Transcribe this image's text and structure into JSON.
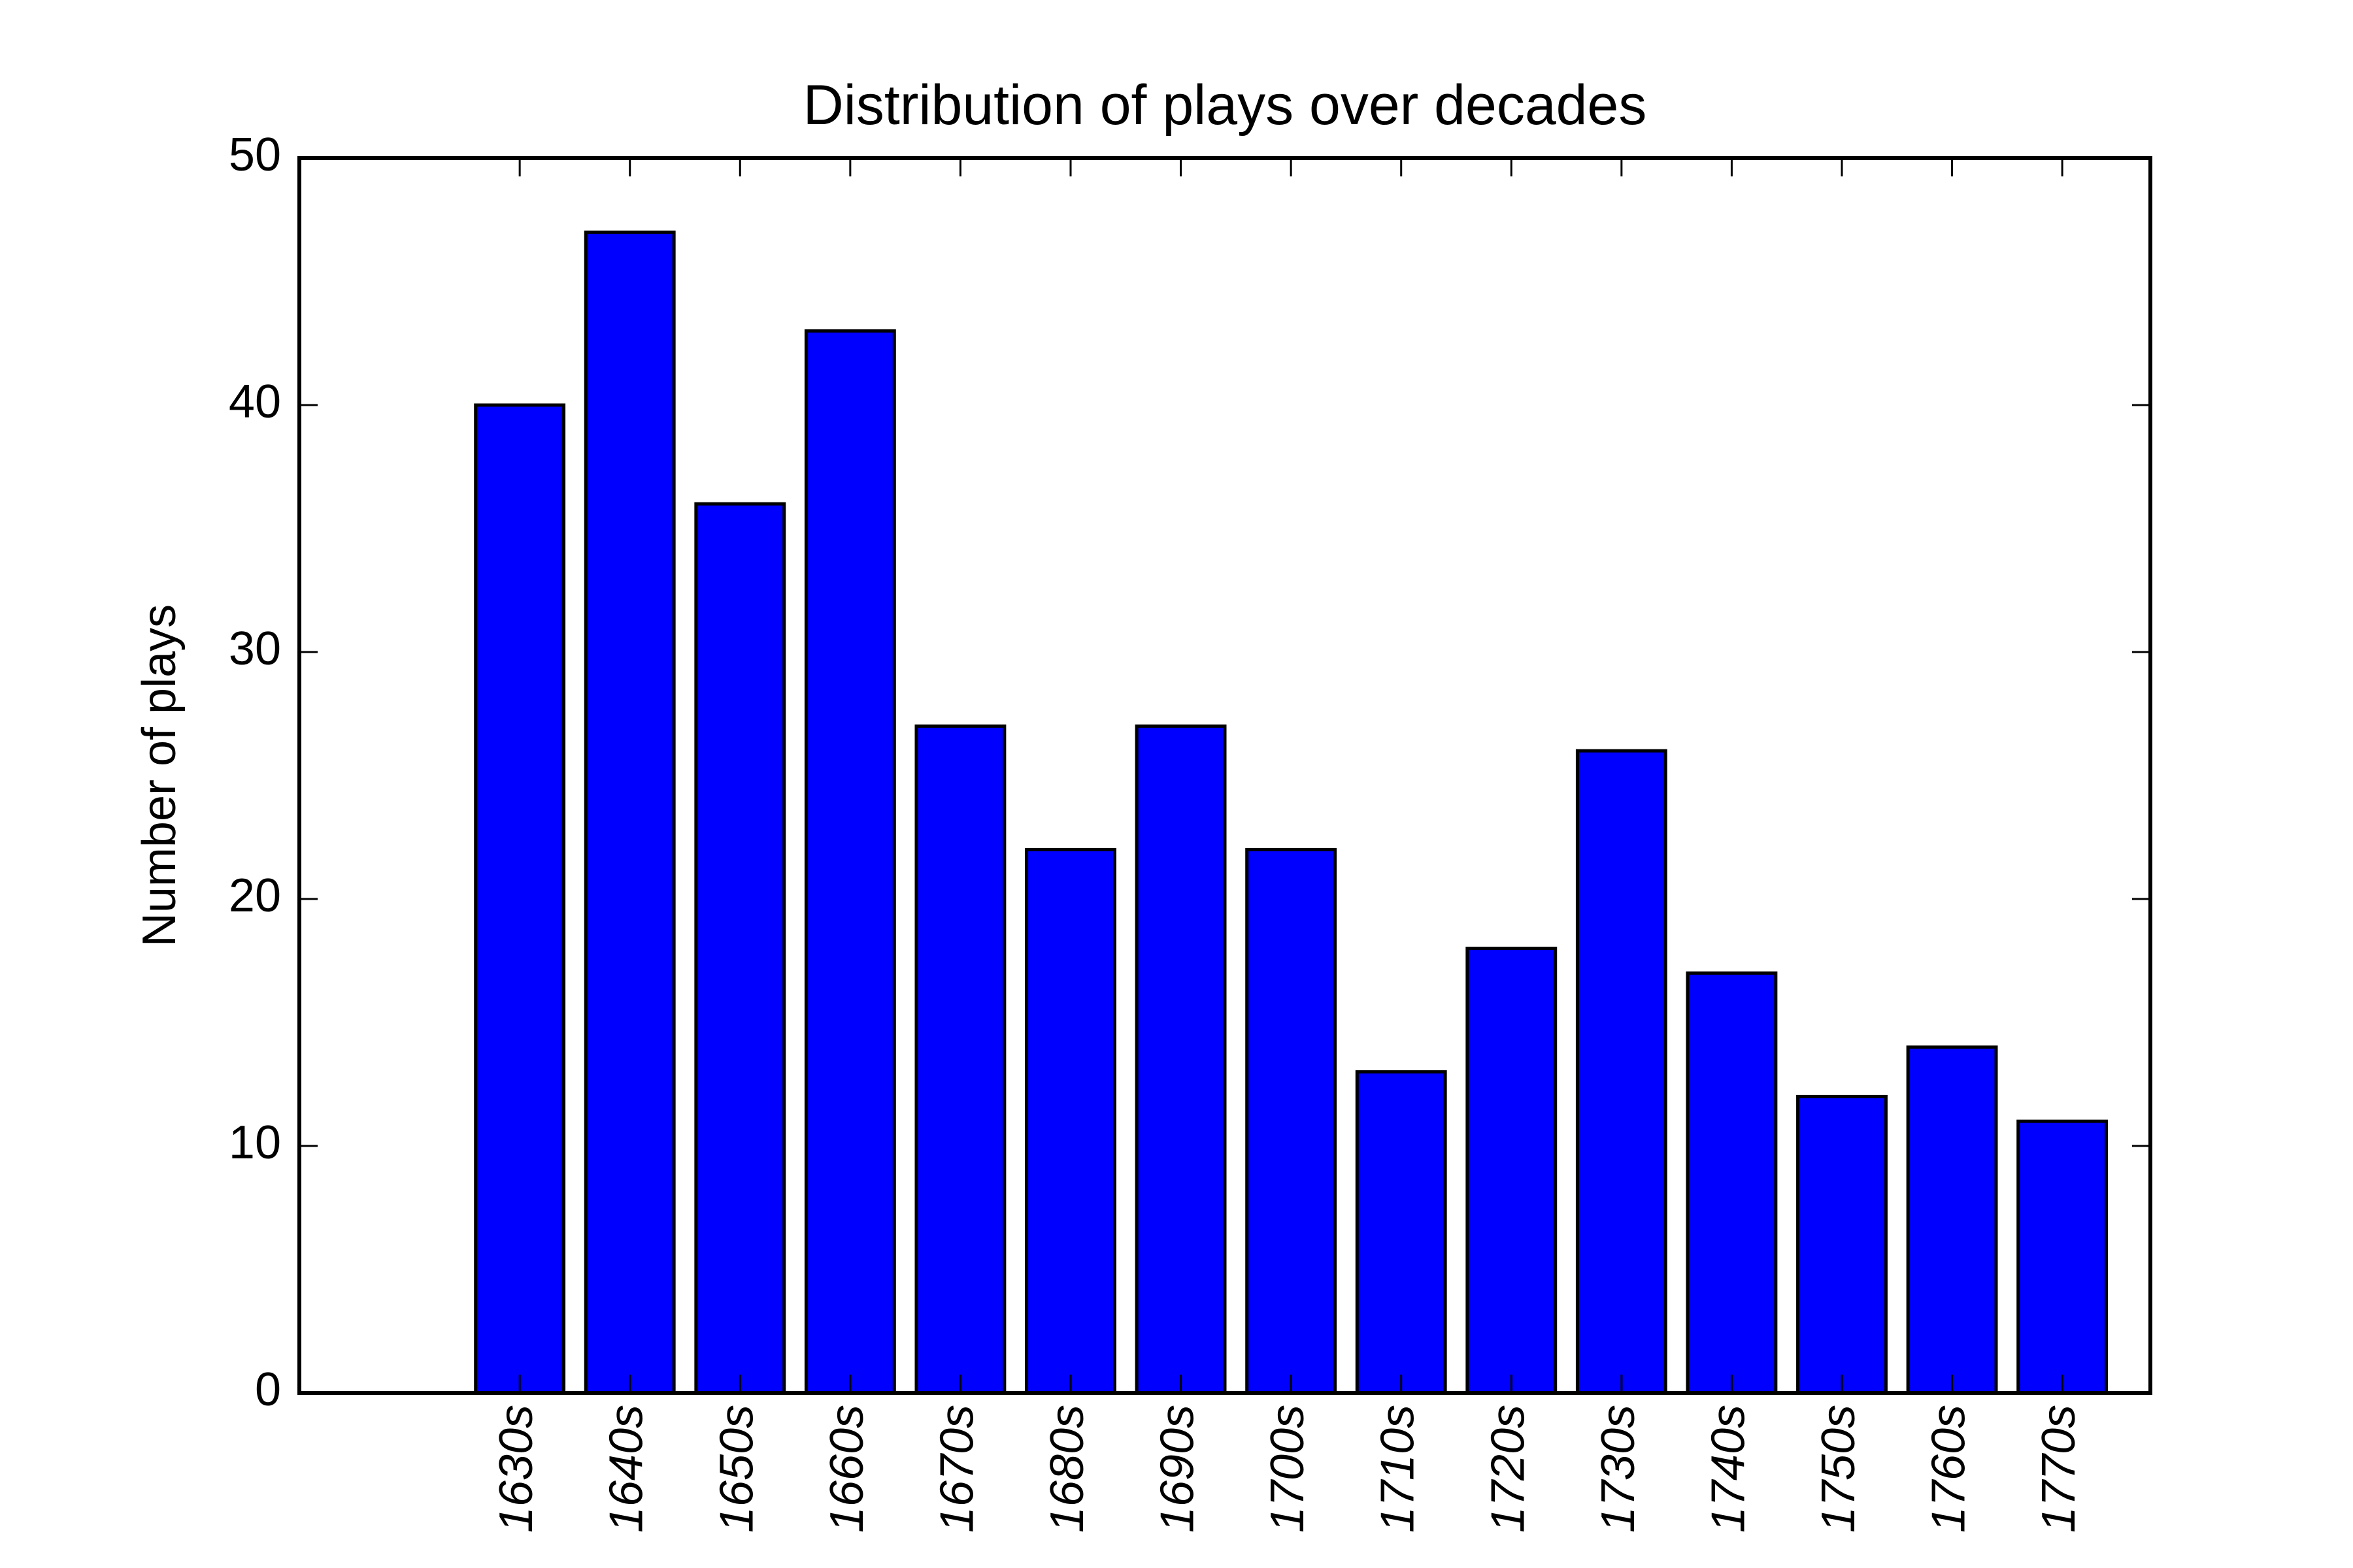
{
  "chart_data": {
    "type": "bar",
    "title": "Distribution of plays over decades",
    "xlabel": "",
    "ylabel": "Number of plays",
    "categories": [
      "1630s",
      "1640s",
      "1650s",
      "1660s",
      "1670s",
      "1680s",
      "1690s",
      "1700s",
      "1710s",
      "1720s",
      "1730s",
      "1740s",
      "1750s",
      "1760s",
      "1770s"
    ],
    "values": [
      40,
      47,
      36,
      43,
      27,
      22,
      27,
      22,
      13,
      18,
      26,
      17,
      12,
      14,
      11
    ],
    "ylim": [
      0,
      50
    ],
    "yticks": [
      0,
      10,
      20,
      30,
      40,
      50
    ],
    "xtick_rotation": "vertical-italic",
    "grid": false,
    "legend": "none",
    "colors": {
      "bar_fill": "#0000ff",
      "bar_edge": "#000000",
      "axes": "#000000",
      "background": "#ffffff"
    }
  }
}
